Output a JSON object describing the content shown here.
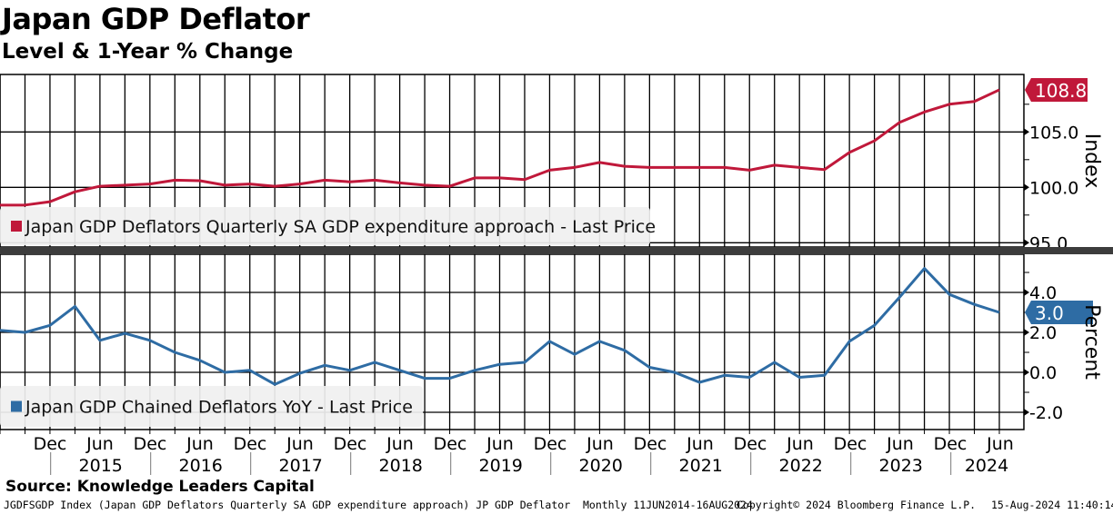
{
  "title": "Japan GDP Deflator",
  "subtitle": "Level & 1-Year % Change",
  "source": "Source: Knowledge Leaders Capital",
  "footer": {
    "ticker": "JGDFSGDP Index (Japan GDP Deflators Quarterly SA GDP expenditure approach) JP GDP Deflator  Monthly 11JUN2014-16AUG2024",
    "copyright": "Copyright© 2024 Bloomberg Finance L.P.",
    "timestamp": "15-Aug-2024 11:40:14"
  },
  "colors": {
    "red": "#c0183a",
    "blue": "#2e6ca4"
  },
  "chart_data": [
    {
      "type": "line",
      "panel": "top",
      "ylabel": "Index",
      "ylim": [
        94.5,
        110
      ],
      "yticks": [
        "95.0",
        "100.0",
        "105.0"
      ],
      "ytick_values": [
        95,
        100,
        105
      ],
      "legend": "Japan GDP Deflators Quarterly SA GDP expenditure approach - Last Price",
      "last_label": "108.8",
      "x_start": "Q2 2014",
      "x_end": "Q2 2024",
      "frequency": "quarterly",
      "values": [
        98.4,
        98.4,
        98.7,
        99.6,
        100.1,
        100.2,
        100.3,
        100.65,
        100.6,
        100.2,
        100.3,
        100.1,
        100.3,
        100.65,
        100.5,
        100.65,
        100.4,
        100.2,
        100.1,
        100.85,
        100.85,
        100.7,
        101.55,
        101.8,
        102.25,
        101.9,
        101.8,
        101.8,
        101.8,
        101.8,
        101.55,
        102.0,
        101.8,
        101.6,
        103.15,
        104.2,
        105.85,
        106.8,
        107.5,
        107.75,
        108.8
      ]
    },
    {
      "type": "line",
      "panel": "bottom",
      "ylabel": "Percent",
      "ylim": [
        -2.9,
        5.9
      ],
      "yticks": [
        "-2.0",
        "0.0",
        "2.0",
        "4.0"
      ],
      "ytick_values": [
        -2,
        0,
        2,
        4
      ],
      "legend": "Japan GDP Chained Deflators YoY - Last Price",
      "last_label": "3.0",
      "x_start": "Q2 2014",
      "x_end": "Q2 2024",
      "frequency": "quarterly",
      "values": [
        2.1,
        2.0,
        2.35,
        3.3,
        1.6,
        1.95,
        1.6,
        1.0,
        0.6,
        0.0,
        0.1,
        -0.6,
        -0.05,
        0.35,
        0.1,
        0.5,
        0.1,
        -0.3,
        -0.3,
        0.1,
        0.4,
        0.5,
        1.55,
        0.9,
        1.55,
        1.1,
        0.25,
        0.0,
        -0.5,
        -0.15,
        -0.25,
        0.5,
        -0.25,
        -0.15,
        1.55,
        2.35,
        3.75,
        5.2,
        3.9,
        3.4,
        3.0
      ]
    }
  ],
  "xaxis": {
    "months": [
      "Dec",
      "Jun",
      "Dec",
      "Jun",
      "Dec",
      "Jun",
      "Dec",
      "Jun",
      "Dec",
      "Jun",
      "Dec",
      "Jun",
      "Dec",
      "Jun",
      "Dec",
      "Jun",
      "Dec",
      "Jun",
      "Dec",
      "Jun"
    ],
    "years": [
      "2015",
      "2016",
      "2017",
      "2018",
      "2019",
      "2020",
      "2021",
      "2022",
      "2023",
      "2024"
    ]
  }
}
